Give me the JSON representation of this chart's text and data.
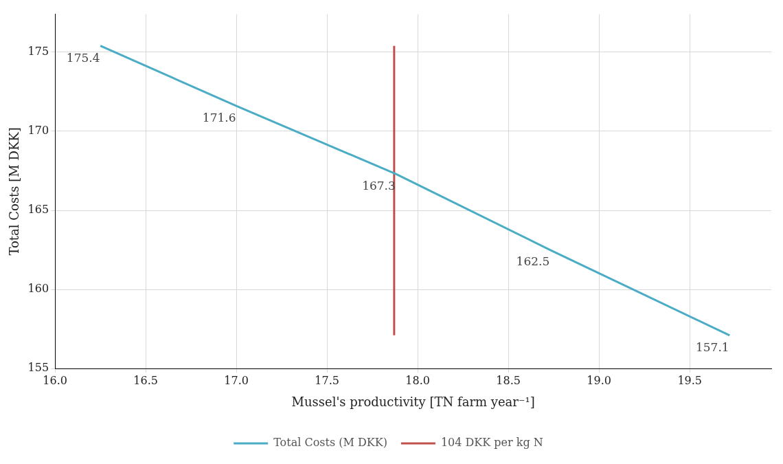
{
  "chart_data": {
    "type": "line",
    "xlabel": "Mussel's productivity [TN farm year⁻¹]",
    "ylabel": "Total Costs [M DKK]",
    "x": [
      16.25,
      17.0,
      17.88,
      18.73,
      19.72
    ],
    "series": [
      {
        "name": "Total Costs (M DKK)",
        "color": "#4bacc6",
        "values": [
          175.4,
          171.6,
          167.3,
          162.5,
          157.1
        ],
        "value_labels": [
          "175.4",
          "171.6",
          "167.3",
          "162.5",
          "157.1"
        ]
      },
      {
        "name": "104 DKK per kg N",
        "color": "#c0504d",
        "x": [
          17.87,
          17.87
        ],
        "values": [
          157.1,
          175.4
        ]
      }
    ],
    "xlim": [
      16.0,
      19.95
    ],
    "xticks": [
      {
        "value": 16,
        "label": "16.0"
      },
      16.5,
      {
        "value": 17,
        "label": "17.0"
      },
      17.5,
      {
        "value": 18,
        "label": "18.0"
      },
      18.5,
      {
        "value": 19,
        "label": "19.0"
      },
      19.5
    ],
    "ylim": [
      155,
      177.4
    ],
    "yticks": [
      155,
      160,
      165,
      170,
      175
    ],
    "grid": true,
    "legend": "bottom",
    "marker": "none",
    "line_style": "solid"
  }
}
